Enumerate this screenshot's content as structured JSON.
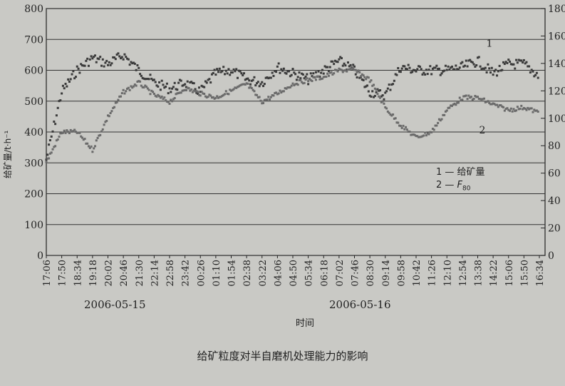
{
  "chart_data": {
    "type": "scatter",
    "title": "",
    "caption": "给矿粒度对半自磨机处理能力的影响",
    "xlabel": "时间",
    "ylabel": "给矿量/t·h⁻¹",
    "ylim": [
      0,
      800
    ],
    "yticks": [
      0,
      100,
      200,
      300,
      400,
      500,
      600,
      700,
      800
    ],
    "y2lim": [
      0,
      180
    ],
    "y2ticks": [
      0,
      20,
      40,
      60,
      80,
      100,
      120,
      140,
      160,
      180
    ],
    "grid": "horizontal",
    "date_labels": [
      "2006-05-15",
      "2006-05-16"
    ],
    "categories": [
      "17:06",
      "17:50",
      "18:34",
      "19:18",
      "20:02",
      "20:46",
      "21:30",
      "22:14",
      "22:58",
      "23:42",
      "00:26",
      "01:10",
      "01:54",
      "02:38",
      "03:22",
      "04:06",
      "04:50",
      "05:34",
      "06:18",
      "07:02",
      "07:46",
      "08:30",
      "09:14",
      "09:58",
      "10:42",
      "11:26",
      "12:10",
      "12:54",
      "13:38",
      "14:22",
      "15:06",
      "15:50",
      "16:34"
    ],
    "series": [
      {
        "name": "1 — 给矿量",
        "marker_label": "1",
        "axis": "left",
        "values": [
          310,
          530,
          600,
          640,
          620,
          650,
          600,
          560,
          540,
          560,
          530,
          590,
          600,
          570,
          560,
          610,
          590,
          570,
          600,
          630,
          600,
          530,
          520,
          610,
          600,
          600,
          600,
          610,
          630,
          590,
          620,
          620,
          580
        ]
      },
      {
        "name": "2 — F80",
        "marker_label": "2",
        "axis": "right",
        "values": [
          68,
          90,
          90,
          77,
          101,
          119,
          126,
          117,
          112,
          122,
          118,
          115,
          120,
          125,
          112,
          118,
          125,
          128,
          130,
          135,
          135,
          128,
          108,
          95,
          86,
          90,
          106,
          115,
          115,
          110,
          106,
          108,
          104
        ]
      }
    ],
    "legend": [
      {
        "num": "1",
        "text": "给矿量"
      },
      {
        "num": "2",
        "text": "F",
        "sub": "80"
      }
    ],
    "legend_position": "right-middle",
    "colors": {
      "series1": "#3a3a3a",
      "series2": "#6a6a6a",
      "background": "#c9c9c5"
    }
  }
}
